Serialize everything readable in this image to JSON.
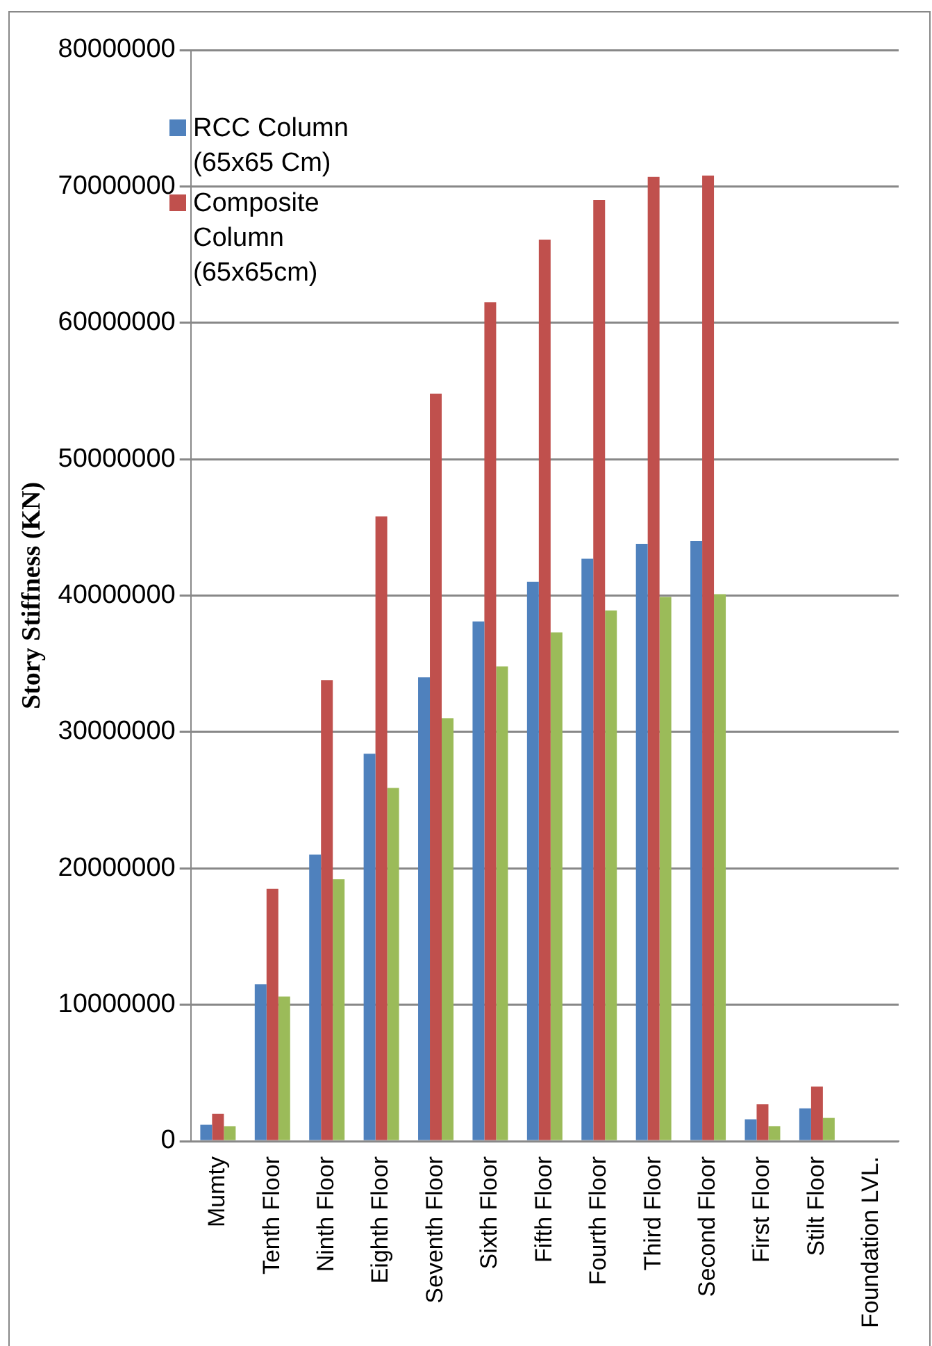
{
  "chart_data": {
    "type": "bar",
    "ylabel": "Story Stiffness (KN)",
    "categories": [
      "Mumty",
      "Tenth Floor",
      "Ninth Floor",
      "Eighth Floor",
      "Seventh Floor",
      "Sixth Floor",
      "Fifth Floor",
      "Fourth Floor",
      "Third Floor",
      "Second Floor",
      "First Floor",
      "Stilt Floor",
      "Foundation LVL."
    ],
    "series": [
      {
        "name": "RCC Column (65x65 Cm)",
        "color": "#4f81bd",
        "values": [
          1200000,
          11500000,
          21000000,
          28400000,
          34000000,
          38100000,
          41000000,
          42700000,
          43800000,
          44000000,
          1600000,
          2400000,
          0
        ]
      },
      {
        "name": "Composite Column (65x65cm)",
        "color": "#c0504d",
        "values": [
          2000000,
          18500000,
          33800000,
          45800000,
          54800000,
          61500000,
          66100000,
          69000000,
          70700000,
          70800000,
          2700000,
          4000000,
          0
        ]
      },
      {
        "color": "#9bbb59",
        "values": [
          1100000,
          10600000,
          19200000,
          25900000,
          31000000,
          34800000,
          37300000,
          38900000,
          39900000,
          40100000,
          1100000,
          1700000,
          0
        ]
      }
    ],
    "ylim": [
      0,
      80000000
    ],
    "yticks": [
      0,
      10000000,
      20000000,
      30000000,
      40000000,
      50000000,
      60000000,
      70000000,
      80000000
    ],
    "grid": "y",
    "legend": "top left"
  }
}
